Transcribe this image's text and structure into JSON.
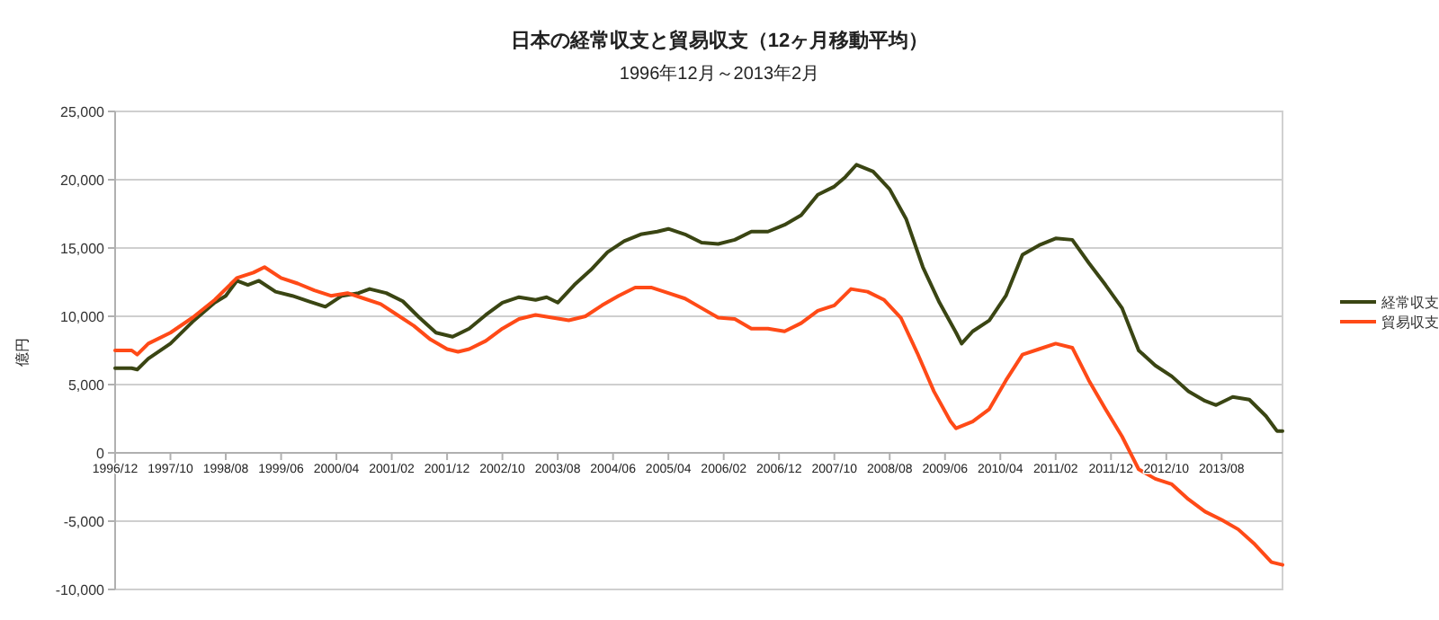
{
  "chart_data": {
    "type": "line",
    "title": "日本の経常収支と貿易収支（12ヶ月移動平均）",
    "subtitle": "1996年12月～2013年2月",
    "ylabel": "億円",
    "xlim": [
      "1996-12",
      "2014-07"
    ],
    "xticks": [
      {
        "value": "1996-12",
        "label": "1996/12"
      },
      {
        "value": "1997-10",
        "label": "1997/10"
      },
      {
        "value": "1998-08",
        "label": "1998/08"
      },
      {
        "value": "1999-06",
        "label": "1999/06"
      },
      {
        "value": "2000-04",
        "label": "2000/04"
      },
      {
        "value": "2001-02",
        "label": "2001/02"
      },
      {
        "value": "2001-12",
        "label": "2001/12"
      },
      {
        "value": "2002-10",
        "label": "2002/10"
      },
      {
        "value": "2003-08",
        "label": "2003/08"
      },
      {
        "value": "2004-06",
        "label": "2004/06"
      },
      {
        "value": "2005-04",
        "label": "2005/04"
      },
      {
        "value": "2006-02",
        "label": "2006/02"
      },
      {
        "value": "2006-12",
        "label": "2006/12"
      },
      {
        "value": "2007-10",
        "label": "2007/10"
      },
      {
        "value": "2008-08",
        "label": "2008/08"
      },
      {
        "value": "2009-06",
        "label": "2009/06"
      },
      {
        "value": "2010-04",
        "label": "2010/04"
      },
      {
        "value": "2011-02",
        "label": "2011/02"
      },
      {
        "value": "2011-12",
        "label": "2011/12"
      },
      {
        "value": "2012-10",
        "label": "2012/10"
      },
      {
        "value": "2013-08",
        "label": "2013/08"
      }
    ],
    "ylim": [
      -10000,
      25000
    ],
    "yticks": [
      {
        "value": -10000,
        "label": "-10,000"
      },
      {
        "value": -5000,
        "label": "-5,000"
      },
      0,
      {
        "value": 5000,
        "label": "5,000"
      },
      {
        "value": 10000,
        "label": "10,000"
      },
      {
        "value": 15000,
        "label": "15,000"
      },
      {
        "value": 20000,
        "label": "20,000"
      },
      {
        "value": 25000,
        "label": "25,000"
      }
    ],
    "grid": "y",
    "legend": "right",
    "series": [
      {
        "name": "経常収支",
        "color": "#3a4513",
        "x": [
          "1996-12",
          "1997-03",
          "1997-04",
          "1997-06",
          "1997-10",
          "1998-02",
          "1998-06",
          "1998-08",
          "1998-10",
          "1998-12",
          "1999-02",
          "1999-05",
          "1999-08",
          "1999-11",
          "2000-02",
          "2000-05",
          "2000-08",
          "2000-10",
          "2001-01",
          "2001-04",
          "2001-07",
          "2001-10",
          "2002-01",
          "2002-04",
          "2002-07",
          "2002-10",
          "2003-01",
          "2003-04",
          "2003-06",
          "2003-08",
          "2003-11",
          "2004-02",
          "2004-05",
          "2004-08",
          "2004-11",
          "2005-02",
          "2005-04",
          "2005-07",
          "2005-10",
          "2006-01",
          "2006-04",
          "2006-07",
          "2006-10",
          "2007-01",
          "2007-04",
          "2007-07",
          "2007-10",
          "2007-12",
          "2008-02",
          "2008-05",
          "2008-08",
          "2008-11",
          "2009-02",
          "2009-05",
          "2009-08",
          "2009-09",
          "2009-11",
          "2010-02",
          "2010-05",
          "2010-08",
          "2010-11",
          "2011-02",
          "2011-05",
          "2011-08",
          "2011-11",
          "2012-02",
          "2012-05",
          "2012-08",
          "2012-11",
          "2013-02",
          "2013-05",
          "2013-07",
          "2013-10",
          "2014-01",
          "2014-04",
          "2014-06",
          "2014-07"
        ],
        "values": [
          6200,
          6200,
          6100,
          6900,
          8000,
          9600,
          11000,
          11500,
          12600,
          12300,
          12600,
          11800,
          11500,
          11100,
          10700,
          11500,
          11700,
          12000,
          11700,
          11100,
          9900,
          8800,
          8500,
          9100,
          10100,
          11000,
          11400,
          11200,
          11400,
          11000,
          12300,
          13400,
          14700,
          15500,
          16000,
          16200,
          16400,
          16000,
          15400,
          15300,
          15600,
          16200,
          16200,
          16700,
          17400,
          18900,
          19500,
          20200,
          21100,
          20600,
          19300,
          17100,
          13600,
          11000,
          8800,
          8000,
          8900,
          9700,
          11500,
          14500,
          15200,
          15700,
          15600,
          13900,
          12300,
          10600,
          7500,
          6400,
          5600,
          4500,
          3800,
          3500,
          4100,
          3900,
          2700,
          1600,
          1600
        ]
      },
      {
        "name": "貿易収支",
        "color": "#ff4a17",
        "x": [
          "1996-12",
          "1997-03",
          "1997-04",
          "1997-06",
          "1997-10",
          "1998-02",
          "1998-06",
          "1998-10",
          "1999-01",
          "1999-03",
          "1999-06",
          "1999-09",
          "1999-12",
          "2000-03",
          "2000-06",
          "2000-09",
          "2000-12",
          "2001-03",
          "2001-06",
          "2001-09",
          "2001-12",
          "2002-02",
          "2002-04",
          "2002-07",
          "2002-10",
          "2003-01",
          "2003-04",
          "2003-07",
          "2003-10",
          "2004-01",
          "2004-04",
          "2004-07",
          "2004-10",
          "2005-01",
          "2005-04",
          "2005-07",
          "2005-10",
          "2006-01",
          "2006-04",
          "2006-07",
          "2006-10",
          "2007-01",
          "2007-04",
          "2007-07",
          "2007-10",
          "2008-01",
          "2008-04",
          "2008-07",
          "2008-10",
          "2009-01",
          "2009-04",
          "2009-07",
          "2009-08",
          "2009-11",
          "2010-02",
          "2010-05",
          "2010-08",
          "2010-11",
          "2011-02",
          "2011-05",
          "2011-08",
          "2011-11",
          "2012-02",
          "2012-05",
          "2012-08",
          "2012-11",
          "2013-02",
          "2013-05",
          "2013-08",
          "2013-11",
          "2014-02",
          "2014-05",
          "2014-07"
        ],
        "values": [
          7500,
          7500,
          7200,
          8000,
          8800,
          9900,
          11200,
          12800,
          13200,
          13600,
          12800,
          12400,
          11900,
          11500,
          11700,
          11300,
          10900,
          10100,
          9300,
          8300,
          7600,
          7400,
          7600,
          8200,
          9100,
          9800,
          10100,
          9900,
          9700,
          10000,
          10800,
          11500,
          12100,
          12100,
          11700,
          11300,
          10600,
          9900,
          9800,
          9100,
          9100,
          8900,
          9500,
          10400,
          10800,
          12000,
          11800,
          11200,
          9900,
          7300,
          4500,
          2300,
          1800,
          2300,
          3200,
          5300,
          7200,
          7600,
          8000,
          7700,
          5300,
          3200,
          1200,
          -1200,
          -1900,
          -2300,
          -3400,
          -4300,
          -4900,
          -5600,
          -6700,
          -8000,
          -8200
        ]
      }
    ]
  }
}
